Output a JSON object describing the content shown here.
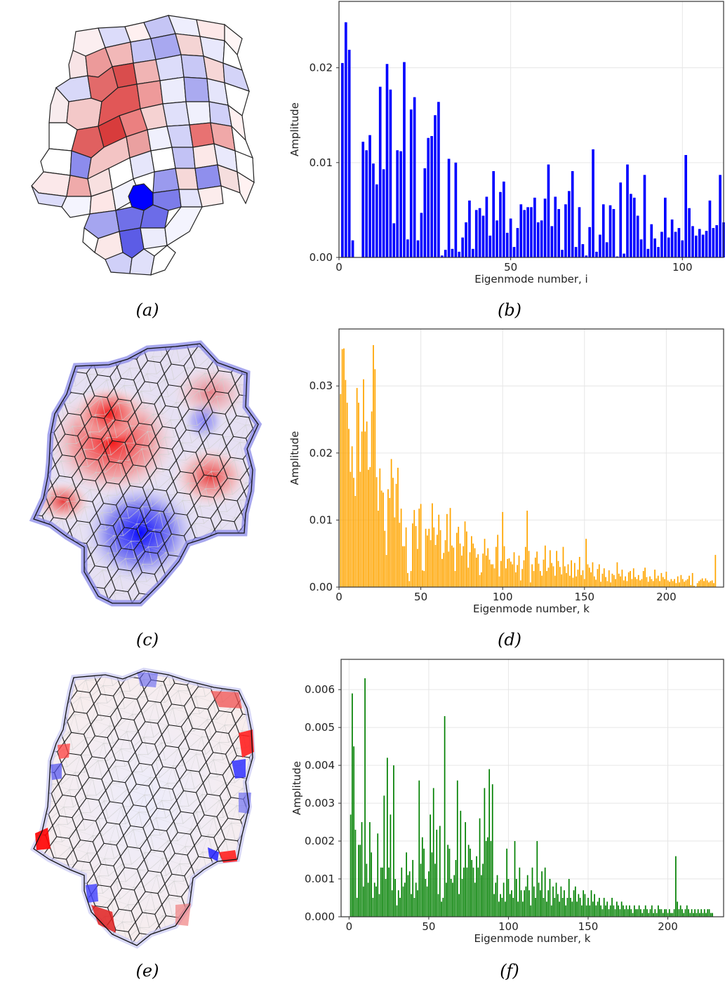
{
  "captions": {
    "a": "(a)",
    "b": "(b)",
    "c": "(c)",
    "d": "(d)",
    "e": "(e)",
    "f": "(f)"
  },
  "colors": {
    "blue": "#0000ff",
    "orange": "#ffa500",
    "green": "#008000",
    "red": "#ff0000",
    "grid": "#e6e6e6"
  },
  "chart_data": [
    {
      "id": "b",
      "type": "bar",
      "xlabel": "Eigenmode number, i",
      "ylabel": "Amplitude",
      "xlim": [
        0,
        112
      ],
      "ylim": [
        0,
        0.027
      ],
      "xticks": [
        0,
        50,
        100
      ],
      "yticks": [
        0.0,
        0.01,
        0.02
      ],
      "ytick_labels": [
        "0.00",
        "0.01",
        "0.02"
      ],
      "color": "#0000ff",
      "bar_width": 0.75,
      "values": [
        0,
        0.0205,
        0.0248,
        0.0219,
        0.0018,
        0,
        0,
        0.0122,
        0.0113,
        0.0129,
        0.0099,
        0.0077,
        0.018,
        0.0093,
        0.0204,
        0.0177,
        0.0036,
        0.0113,
        0.0112,
        0.0206,
        0.0019,
        0.0156,
        0.0169,
        0.0018,
        0.0047,
        0.0094,
        0.0126,
        0.0128,
        0.015,
        0.0164,
        0.0002,
        0.0008,
        0.0104,
        0.0009,
        0.01,
        0.0006,
        0.0021,
        0.0037,
        0.006,
        0.0009,
        0.005,
        0.0052,
        0.0044,
        0.0064,
        0.0023,
        0.0091,
        0.0039,
        0.0069,
        0.008,
        0.0026,
        0.0041,
        0.0011,
        0.0031,
        0.0056,
        0.005,
        0.0053,
        0.0053,
        0.0063,
        0.0037,
        0.0039,
        0.0062,
        0.0098,
        0.0033,
        0.0064,
        0.0051,
        0.0008,
        0.0056,
        0.007,
        0.0091,
        0.0011,
        0.0053,
        0.0014,
        0.0002,
        0.0032,
        0.0114,
        0.0006,
        0.0024,
        0.0056,
        0.0016,
        0.0055,
        0.0051,
        0.0001,
        0.0079,
        0.0004,
        0.0098,
        0.0067,
        0.0063,
        0.0044,
        0.0019,
        0.0087,
        0.0009,
        0.0035,
        0.002,
        0.0011,
        0.0027,
        0.0063,
        0.0021,
        0.004,
        0.0027,
        0.0031,
        0.0018,
        0.0108,
        0.0052,
        0.0033,
        0.0023,
        0.003,
        0.0024,
        0.0028,
        0.006,
        0.0031,
        0.0034,
        0.0087,
        0.0037
      ]
    },
    {
      "id": "d",
      "type": "bar",
      "xlabel": "Eigenmode number, k",
      "ylabel": "Amplitude",
      "xlim": [
        0,
        235
      ],
      "ylim": [
        0,
        0.0385
      ],
      "xticks": [
        0,
        50,
        100,
        150,
        200
      ],
      "yticks": [
        0.0,
        0.01,
        0.02,
        0.03
      ],
      "ytick_labels": [
        "0.00",
        "0.01",
        "0.02",
        "0.03"
      ],
      "color": "#ffa500",
      "bar_width": 0.75,
      "values": [
        0,
        0.0288,
        0.0355,
        0.0356,
        0.0309,
        0.0275,
        0.0236,
        0.0172,
        0.021,
        0.0163,
        0.0136,
        0.0297,
        0.0275,
        0.0172,
        0.0232,
        0.031,
        0.0232,
        0.0247,
        0.0175,
        0.0179,
        0.0262,
        0.0361,
        0.0325,
        0.0164,
        0.0114,
        0.0177,
        0.0144,
        0.0141,
        0.0084,
        0.0048,
        0.0146,
        0.0133,
        0.0191,
        0.0163,
        0.0104,
        0.0154,
        0.0178,
        0.0096,
        0.0117,
        0.0061,
        0.0061,
        0.0089,
        0.0021,
        0.0009,
        0.0024,
        0.0095,
        0.0115,
        0.0091,
        0.0057,
        0.0117,
        0.0124,
        0.0025,
        0.0024,
        0.0087,
        0.0077,
        0.0087,
        0.007,
        0.0125,
        0.0089,
        0.0063,
        0.0078,
        0.0108,
        0.0085,
        0.0042,
        0.0051,
        0.007,
        0.0109,
        0.0053,
        0.0118,
        0.0062,
        0.0059,
        0.0024,
        0.0081,
        0.009,
        0.0065,
        0.0047,
        0.0061,
        0.0098,
        0.0083,
        0.0029,
        0.0052,
        0.0076,
        0.0065,
        0.0058,
        0.0044,
        0.0049,
        0.0018,
        0.0022,
        0.005,
        0.0072,
        0.0047,
        0.0058,
        0.0041,
        0.0034,
        0.0034,
        0.0028,
        0.006,
        0.0078,
        0.0016,
        0.0039,
        0.0112,
        0.0061,
        0.0028,
        0.0042,
        0.0043,
        0.0038,
        0.0034,
        0.0052,
        0.0022,
        0.0033,
        0.0047,
        0.001,
        0.0027,
        0.004,
        0.006,
        0.0114,
        0.0054,
        0.0007,
        0.0034,
        0.0024,
        0.0044,
        0.0053,
        0.0035,
        0.0024,
        0.0017,
        0.0041,
        0.0062,
        0.0024,
        0.0029,
        0.0055,
        0.0036,
        0.0031,
        0.0017,
        0.0054,
        0.0039,
        0.003,
        0.0019,
        0.006,
        0.0031,
        0.0021,
        0.0034,
        0.0017,
        0.004,
        0.0014,
        0.0036,
        0.0016,
        0.0026,
        0.0045,
        0.0018,
        0.0025,
        0.0012,
        0.0072,
        0.0034,
        0.0029,
        0.0022,
        0.0037,
        0.0016,
        0.0011,
        0.0027,
        0.0034,
        0.0008,
        0.002,
        0.0028,
        0.0015,
        0.0009,
        0.0025,
        0.0007,
        0.002,
        0.0018,
        0.0012,
        0.0037,
        0.002,
        0.0016,
        0.0026,
        0.001,
        0.0016,
        0.0009,
        0.0022,
        0.0024,
        0.0012,
        0.0028,
        0.0015,
        0.0012,
        0.0018,
        0.001,
        0.0012,
        0.0024,
        0.0029,
        0.0015,
        0.0008,
        0.0016,
        0.0012,
        0.0009,
        0.0026,
        0.0013,
        0.0017,
        0.0009,
        0.0021,
        0.0015,
        0.0012,
        0.0023,
        0.001,
        0.0008,
        0.0012,
        0.0009,
        0.0012,
        0.0006,
        0.0016,
        0.0007,
        0.0018,
        0.0012,
        0.0008,
        0.001,
        0.0012,
        0.0017,
        0.0003,
        0.0021,
        0.0002,
        0,
        0.0006,
        0.0009,
        0.0011,
        0.0013,
        0.0009,
        0.0013,
        0.001,
        0.0007,
        0.0009,
        0.001,
        0.0006,
        0.0048
      ]
    },
    {
      "id": "f",
      "type": "bar",
      "xlabel": "Eigenmode number, k",
      "ylabel": "Amplitude",
      "xlim": [
        -5,
        235
      ],
      "ylim": [
        0,
        0.0068
      ],
      "xticks": [
        0,
        50,
        100,
        150,
        200
      ],
      "yticks": [
        0.0,
        0.001,
        0.002,
        0.003,
        0.004,
        0.005,
        0.006
      ],
      "ytick_labels": [
        "0.000",
        "0.001",
        "0.002",
        "0.003",
        "0.004",
        "0.005",
        "0.006"
      ],
      "color": "#008000",
      "bar_width": 0.75,
      "values": [
        0,
        0.0027,
        0.0059,
        0.0045,
        0.0023,
        0.0005,
        0.0019,
        0.0019,
        0.0025,
        0.0008,
        0.0063,
        0.0014,
        0.0009,
        0.0025,
        0.0017,
        0.0005,
        0.0009,
        0.0008,
        0.0022,
        0.0006,
        0.0013,
        0.0013,
        0.0032,
        0.001,
        0.0042,
        0.0013,
        0.0027,
        0.0007,
        0.004,
        0.001,
        0.0003,
        0.0007,
        0.0005,
        0.0013,
        0.0008,
        0.0009,
        0.0017,
        0.0011,
        0.0012,
        0.0006,
        0.0015,
        0.0005,
        0.0009,
        0.0007,
        0.0036,
        0.0014,
        0.0021,
        0.0018,
        0.001,
        0.0008,
        0.0012,
        0.0027,
        0.0017,
        0.0034,
        0.0014,
        0.0023,
        0.0006,
        0.0024,
        0.0004,
        0.0005,
        0.0053,
        0.0009,
        0.0019,
        0.0018,
        0.001,
        0.0009,
        0.0011,
        0.0015,
        0.0036,
        0.0006,
        0.0028,
        0.001,
        0.0013,
        0.0025,
        0.0013,
        0.0019,
        0.0018,
        0.0015,
        0.0013,
        0.0009,
        0.0016,
        0.0013,
        0.0026,
        0.0011,
        0.0014,
        0.0034,
        0.002,
        0.0021,
        0.0039,
        0.002,
        0.0035,
        0.0006,
        0.0009,
        0.0011,
        0.0004,
        0.0006,
        0.0005,
        0.0009,
        0.0004,
        0.0018,
        0.001,
        0.0006,
        0.0007,
        0.0005,
        0.002,
        0.001,
        0.0004,
        0.0013,
        0.0007,
        0.0004,
        0.0007,
        0.0008,
        0.0011,
        0.0007,
        0.0003,
        0.0013,
        0.0008,
        0.0005,
        0.002,
        0.0009,
        0.0007,
        0.0012,
        0.0005,
        0.0013,
        0.0004,
        0.0007,
        0.001,
        0.0003,
        0.0008,
        0.0005,
        0.0009,
        0.0006,
        0.0004,
        0.0008,
        0.0005,
        0.0007,
        0.0003,
        0.0005,
        0.001,
        0.0005,
        0.0004,
        0.0007,
        0.0008,
        0.0004,
        0.0006,
        0.0005,
        0.0003,
        0.0007,
        0.0006,
        0.0003,
        0.0005,
        0.0003,
        0.0007,
        0.0004,
        0.0006,
        0.0003,
        0.0004,
        0.0005,
        0.0003,
        0.0002,
        0.0005,
        0.0003,
        0.0004,
        0.0002,
        0.0003,
        0.0005,
        0.0003,
        0.0002,
        0.0004,
        0.0003,
        0.0002,
        0.0004,
        0.0003,
        0.0002,
        0.0003,
        0.0002,
        0.0003,
        0.0002,
        0.0001,
        0.0003,
        0.0002,
        0.0002,
        0.0003,
        0.0002,
        0.0001,
        0.0002,
        0.0003,
        0.0002,
        0.0001,
        0.0002,
        0.0003,
        0.0001,
        0.0002,
        0.0001,
        0.0003,
        0.0002,
        0.0002,
        0.0001,
        0.0002,
        0.0002,
        0.0001,
        0.0002,
        0.0001,
        0.0001,
        0.0002,
        0.0016,
        0.0004,
        0.0002,
        0.0003,
        0.0002,
        0.0001,
        0.0002,
        0.0003,
        0.0002,
        0.0001,
        0.0002,
        0.0001,
        0.0002,
        0.0001,
        0.0002,
        0.0001,
        0.0002,
        0.0001,
        0.0002,
        0.0001,
        0.0002,
        0.0002,
        0.0001,
        0.0001
      ]
    }
  ]
}
